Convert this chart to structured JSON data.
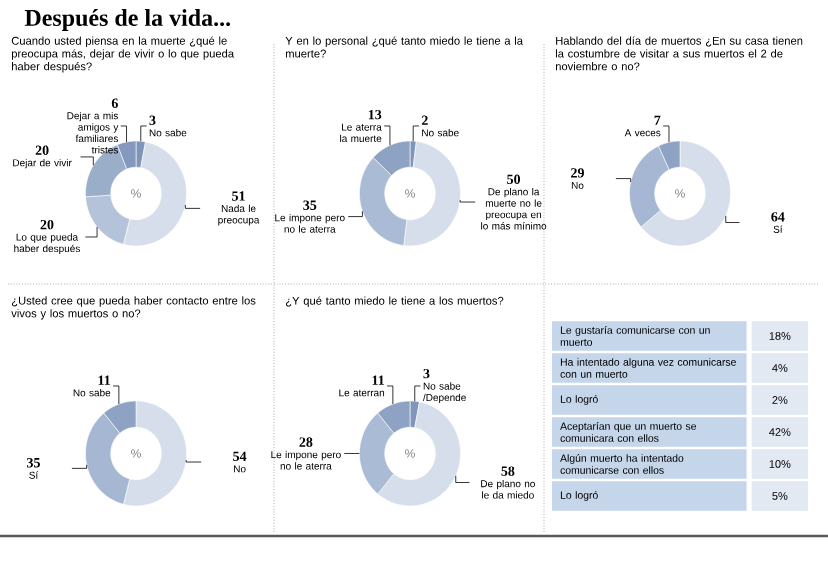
{
  "chart_data": [
    {
      "type": "donut",
      "title": "Después de la vida...",
      "subtitle": "Cuando usted piensa en la muerte ¿qué le preocupa más, dejar de vivir o lo que pueda haber después?",
      "annotations": [
        "%"
      ],
      "data_labels": true,
      "categories": [
        "No sabe",
        "Nada le preocupa",
        "Lo que pueda haber después",
        "Dejar de vivir",
        "Dejar a mis amigos y familiares tristes"
      ],
      "values": [
        3,
        51,
        20,
        20,
        6
      ],
      "colors": [
        "#7f95bb",
        "#d5deea",
        "#b4c3da",
        "#9aaeca",
        "#8499bd"
      ]
    },
    {
      "type": "donut",
      "subtitle": "Y en lo personal ¿qué tanto miedo le tiene a la muerte?",
      "annotations": [
        "%"
      ],
      "data_labels": true,
      "categories": [
        "No sabe",
        "De plano la muerte no le preocupa en lo más mínimo",
        "Le impone pero no le aterra",
        "Le aterra la muerte"
      ],
      "values": [
        2,
        50,
        35,
        13
      ],
      "colors": [
        "#7f95bb",
        "#d5deea",
        "#a9bbd5",
        "#8ea3c4"
      ]
    },
    {
      "type": "donut",
      "subtitle": "Hablando del día de muertos ¿En su casa tienen la costumbre de visitar a sus muertos el 2 de noviembre o no?",
      "annotations": [
        "%"
      ],
      "data_labels": true,
      "categories": [
        "Sí",
        "No",
        "A veces"
      ],
      "values": [
        64,
        29,
        7
      ],
      "colors": [
        "#d5deea",
        "#a5b7d2",
        "#8ea3c4"
      ]
    },
    {
      "type": "donut",
      "subtitle": "¿Usted cree que pueda haber contacto entre los vivos y los muertos o no?",
      "annotations": [
        "%"
      ],
      "data_labels": true,
      "categories": [
        "No",
        "Sí",
        "No sabe"
      ],
      "values": [
        54,
        35,
        11
      ],
      "colors": [
        "#d5deea",
        "#a5b7d2",
        "#8ea3c4"
      ]
    },
    {
      "type": "donut",
      "subtitle": "¿Y qué tanto miedo le tiene a los muertos?",
      "annotations": [
        "%"
      ],
      "data_labels": true,
      "categories": [
        "No sabe /Depende",
        "De plano no le da miedo",
        "Le impone pero no le aterra",
        "Le aterran"
      ],
      "values": [
        3,
        58,
        28,
        11
      ],
      "colors": [
        "#7f95bb",
        "#d5deea",
        "#a9bbd5",
        "#8ea3c4"
      ]
    },
    {
      "type": "other",
      "categories": [
        "Le gustaría comunicarse con un muerto",
        "Ha intentado alguna vez comunicarse con un muerto",
        "Lo logró",
        "Aceptarían que un muerto se comunicara con ellos",
        "Algún muerto ha intentado comunicarse con ellos",
        "Lo logró"
      ],
      "value_labels": [
        "18%",
        "4%",
        "2%",
        "42%",
        "10%",
        "5%"
      ]
    }
  ]
}
